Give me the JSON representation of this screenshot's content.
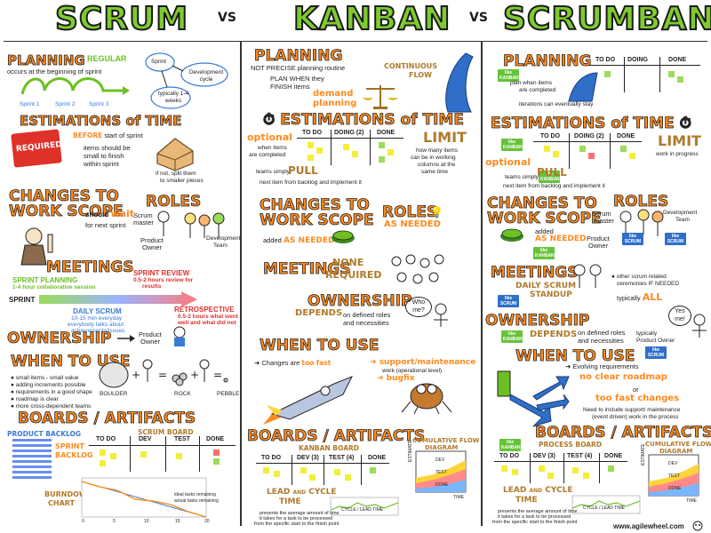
{
  "header": {
    "scrum": "SCRUM",
    "vs1": "VS",
    "kanban": "KANBAN",
    "vs2": "VS",
    "scrumban": "SCRUMBAN"
  },
  "scrum": {
    "planning": {
      "title": "PLANNING",
      "arrow_label": "REGULAR",
      "note": "occurs at the beginning of sprint",
      "sprints": [
        "Sprint 1",
        "Sprint 2",
        "Sprint 3"
      ],
      "bubble_sprint": "Sprint",
      "bubble_dev": "Development cycle",
      "bubble_weeks": "typically 1-4 weeks"
    },
    "estimations": {
      "title": "ESTIMATIONS of TIME",
      "stamp": "REQUIRED",
      "before_bold": "BEFORE",
      "before": "start of sprint",
      "must1": "items should be",
      "must2": "small to finish",
      "must3": "within sprint",
      "split1": "if not, split them",
      "split2": "to smaller pieces"
    },
    "changes": {
      "title1": "CHANGES TO",
      "title2": "WORK SCOPE",
      "should": "should",
      "wait": "wait",
      "next": "for next sprint"
    },
    "roles": {
      "title": "ROLES",
      "scrum_master1": "Scrum",
      "scrum_master2": "master",
      "product_owner1": "Product",
      "product_owner2": "Owner",
      "dev_team1": "Development",
      "dev_team2": "Team"
    },
    "meetings": {
      "title": "MEETINGS",
      "sprint_planning": "SPRINT PLANNING",
      "sp_note": "1-4 hour collaborative session",
      "sprint_label": "SPRINT",
      "sprint_review": "SPRINT REVIEW",
      "sr_note1": "0.5-2 hours review for",
      "sr_note2": "results",
      "daily_scrum": "DAILY SCRUM",
      "ds_note1": "10-15 min everyday",
      "ds_note2": "everybody talks about",
      "ds_note3": "achievements/issues",
      "retro": "RETROSPECTIVE",
      "retro_note1": "0.5-2 hours what went",
      "retro_note2": "well and what did not"
    },
    "ownership": {
      "title": "OWNERSHIP",
      "po1": "Product",
      "po2": "Owner"
    },
    "when": {
      "title": "WHEN TO USE",
      "items": [
        "small items - small value",
        "adding increments possible",
        "requirements in a good shape",
        "roadmap is clear",
        "more cross-dependent teams"
      ],
      "boulder": "BOULDER",
      "rock": "ROCK",
      "pebble": "PEBBLE"
    },
    "boards": {
      "title": "BOARDS / ARTIFACTS",
      "product_backlog": "PRODUCT BACKLOG",
      "sprint_backlog1": "SPRINT",
      "sprint_backlog2": "BACKLOG",
      "scrum_board": "SCRUM BOARD",
      "cols": [
        "TO DO",
        "DEV",
        "TEST",
        "DONE"
      ],
      "burndown1": "BURNDOWN",
      "burndown2": "CHART",
      "legend1": "ideal tasks remaining",
      "legend2": "actual tasks remaining",
      "x_ticks": [
        "0",
        "5",
        "10",
        "15",
        "20"
      ]
    }
  },
  "kanban": {
    "planning": {
      "title": "PLANNING",
      "not_precise": "NOT PRECISE planning routine",
      "plan1": "PLAN WHEN they",
      "plan2": "FINISH items",
      "demand1": "demand",
      "demand2": "planning",
      "cont1": "CONTINUOUS",
      "cont2": "FLOW"
    },
    "estimations": {
      "title": "ESTIMATIONS of TIME",
      "cols": [
        "TO DO",
        "DOING (2)",
        "DONE"
      ],
      "optional": "optional",
      "opt_note1": "when items",
      "opt_note2": "are completed",
      "limit": "LIMIT",
      "limit_note1": "how many items",
      "limit_note2": "can be in working",
      "limit_note3": "columns at the",
      "limit_note4": "same time",
      "pull_pre": "teams simply",
      "pull": "PULL",
      "pull_note": "next item from backlog and implement it"
    },
    "changes": {
      "title1": "CHANGES TO",
      "title2": "WORK SCOPE",
      "added": "added",
      "as_needed": "AS NEEDED"
    },
    "roles": {
      "title": "ROLES",
      "as_needed": "AS NEEDED"
    },
    "meetings": {
      "title": "MEETINGS",
      "none1": "NONE",
      "none2": "REQUIRED"
    },
    "ownership": {
      "title": "OWNERSHIP",
      "depends": "DEPENDS",
      "note1": "on defined roles",
      "note2": "and necessities",
      "who": "Who me?"
    },
    "when": {
      "title": "WHEN TO USE",
      "changes_pre": "Changes are",
      "too_fast": "too fast",
      "support": "support/maintenance",
      "work": "work (operational level)",
      "bugfix": "bugfix"
    },
    "boards": {
      "title": "BOARDS / ARTIFACTS",
      "kanban_board": "KANBAN BOARD",
      "cols": [
        "TO DO",
        "DEV (3)",
        "TEST (4)",
        "DONE"
      ],
      "cfd1": "CUMULATIVE FLOW",
      "cfd2": "DIAGRAM",
      "estimate": "ESTIMATE",
      "time": "TIME",
      "cfd_dev": "DEV",
      "cfd_test": "TEST",
      "cfd_done": "DONE",
      "lead1": "LEAD",
      "lead_and": "AND",
      "lead2": "CYCLE",
      "lead3": "TIME",
      "cycle_label": "CYCLE / LEAD TIME",
      "lead_note1": "presents the average amount of time",
      "lead_note2": "it takes for a task to be processed",
      "lead_note3": "from the specific start to the finish point"
    }
  },
  "scrumban": {
    "planning": {
      "title": "PLANNING",
      "tag_kanban": "like KANBAN",
      "plan1": "plan when items",
      "plan2": "are completed",
      "iter": "iterations can eventually stay",
      "cols": [
        "TO DO",
        "DOING",
        "DONE"
      ]
    },
    "estimations": {
      "title": "ESTIMATIONS of TIME",
      "cols": [
        "TO DO",
        "DOING (2)",
        "DONE"
      ],
      "tag1": "like KANBAN",
      "optional": "optional",
      "limit": "LIMIT",
      "limit_note": "work in progress",
      "tag2": "like KANBAN",
      "pull_pre": "teams simply",
      "pull": "PULL",
      "pull_note": "next item from backlog and implement it"
    },
    "changes": {
      "title1": "CHANGES TO",
      "title2": "WORK SCOPE",
      "added": "added",
      "as_needed": "AS NEEDED",
      "tag": "like KANBAN"
    },
    "roles": {
      "title": "ROLES",
      "scrum1": "Scrum",
      "scrum2": "master",
      "po1": "Product",
      "po2": "Owner",
      "dev1": "Development",
      "dev2": "Team",
      "tag1": "like SCRUM",
      "tag2": "like SCRUM"
    },
    "meetings": {
      "title": "MEETINGS",
      "daily1": "DAILY SCRUM",
      "daily2": "STANDUP",
      "other1": "other scrum related",
      "other2": "ceremonies IF NEEDED",
      "typically": "typically",
      "all": "ALL",
      "tag": "like SCRUM"
    },
    "ownership": {
      "title": "OWNERSHIP",
      "depends": "DEPENDS",
      "note1": "on defined roles",
      "note2": "and necessities",
      "typ1": "typically",
      "typ2": "Product Owner",
      "yes": "Yes me!",
      "tag1": "like KANBAN",
      "tag2": "like SCRUM"
    },
    "when": {
      "title": "WHEN TO USE",
      "evolving": "Evolving requirements",
      "no_roadmap": "no clear roadmap",
      "or": "or",
      "too_fast": "too fast changes",
      "need1": "Need to include support/ maintenance",
      "need2": "(event driven) work in the process"
    },
    "boards": {
      "title": "BOARDS / ARTIFACTS",
      "process_board": "PROCESS BOARD",
      "cols": [
        "TO DO",
        "DEV (3)",
        "TEST (4)",
        "DONE"
      ],
      "tag": "like KANBAN",
      "cfd1": "CUMULATIVE FLOW",
      "cfd2": "DIAGRAM",
      "estimate": "ESTIMATE",
      "time": "TIME",
      "cfd_dev": "DEV",
      "cfd_test": "TEST",
      "cfd_done": "DONE",
      "lead1": "LEAD",
      "lead_and": "AND",
      "lead2": "CYCLE",
      "lead3": "TIME",
      "cycle_label": "CYCLE / LEAD TIME",
      "lead_note1": "presents the average amount of time",
      "lead_note2": "it takes for a task to be processed",
      "lead_note3": "from the specific start to the finish point"
    }
  },
  "footer": {
    "url": "www.agilewheel.com"
  },
  "colors": {
    "green": "#7ecb2e",
    "orange": "#ff8a1e",
    "yellow": "#f4ee3a",
    "red": "#e0302a",
    "blue": "#3a7bd5"
  }
}
